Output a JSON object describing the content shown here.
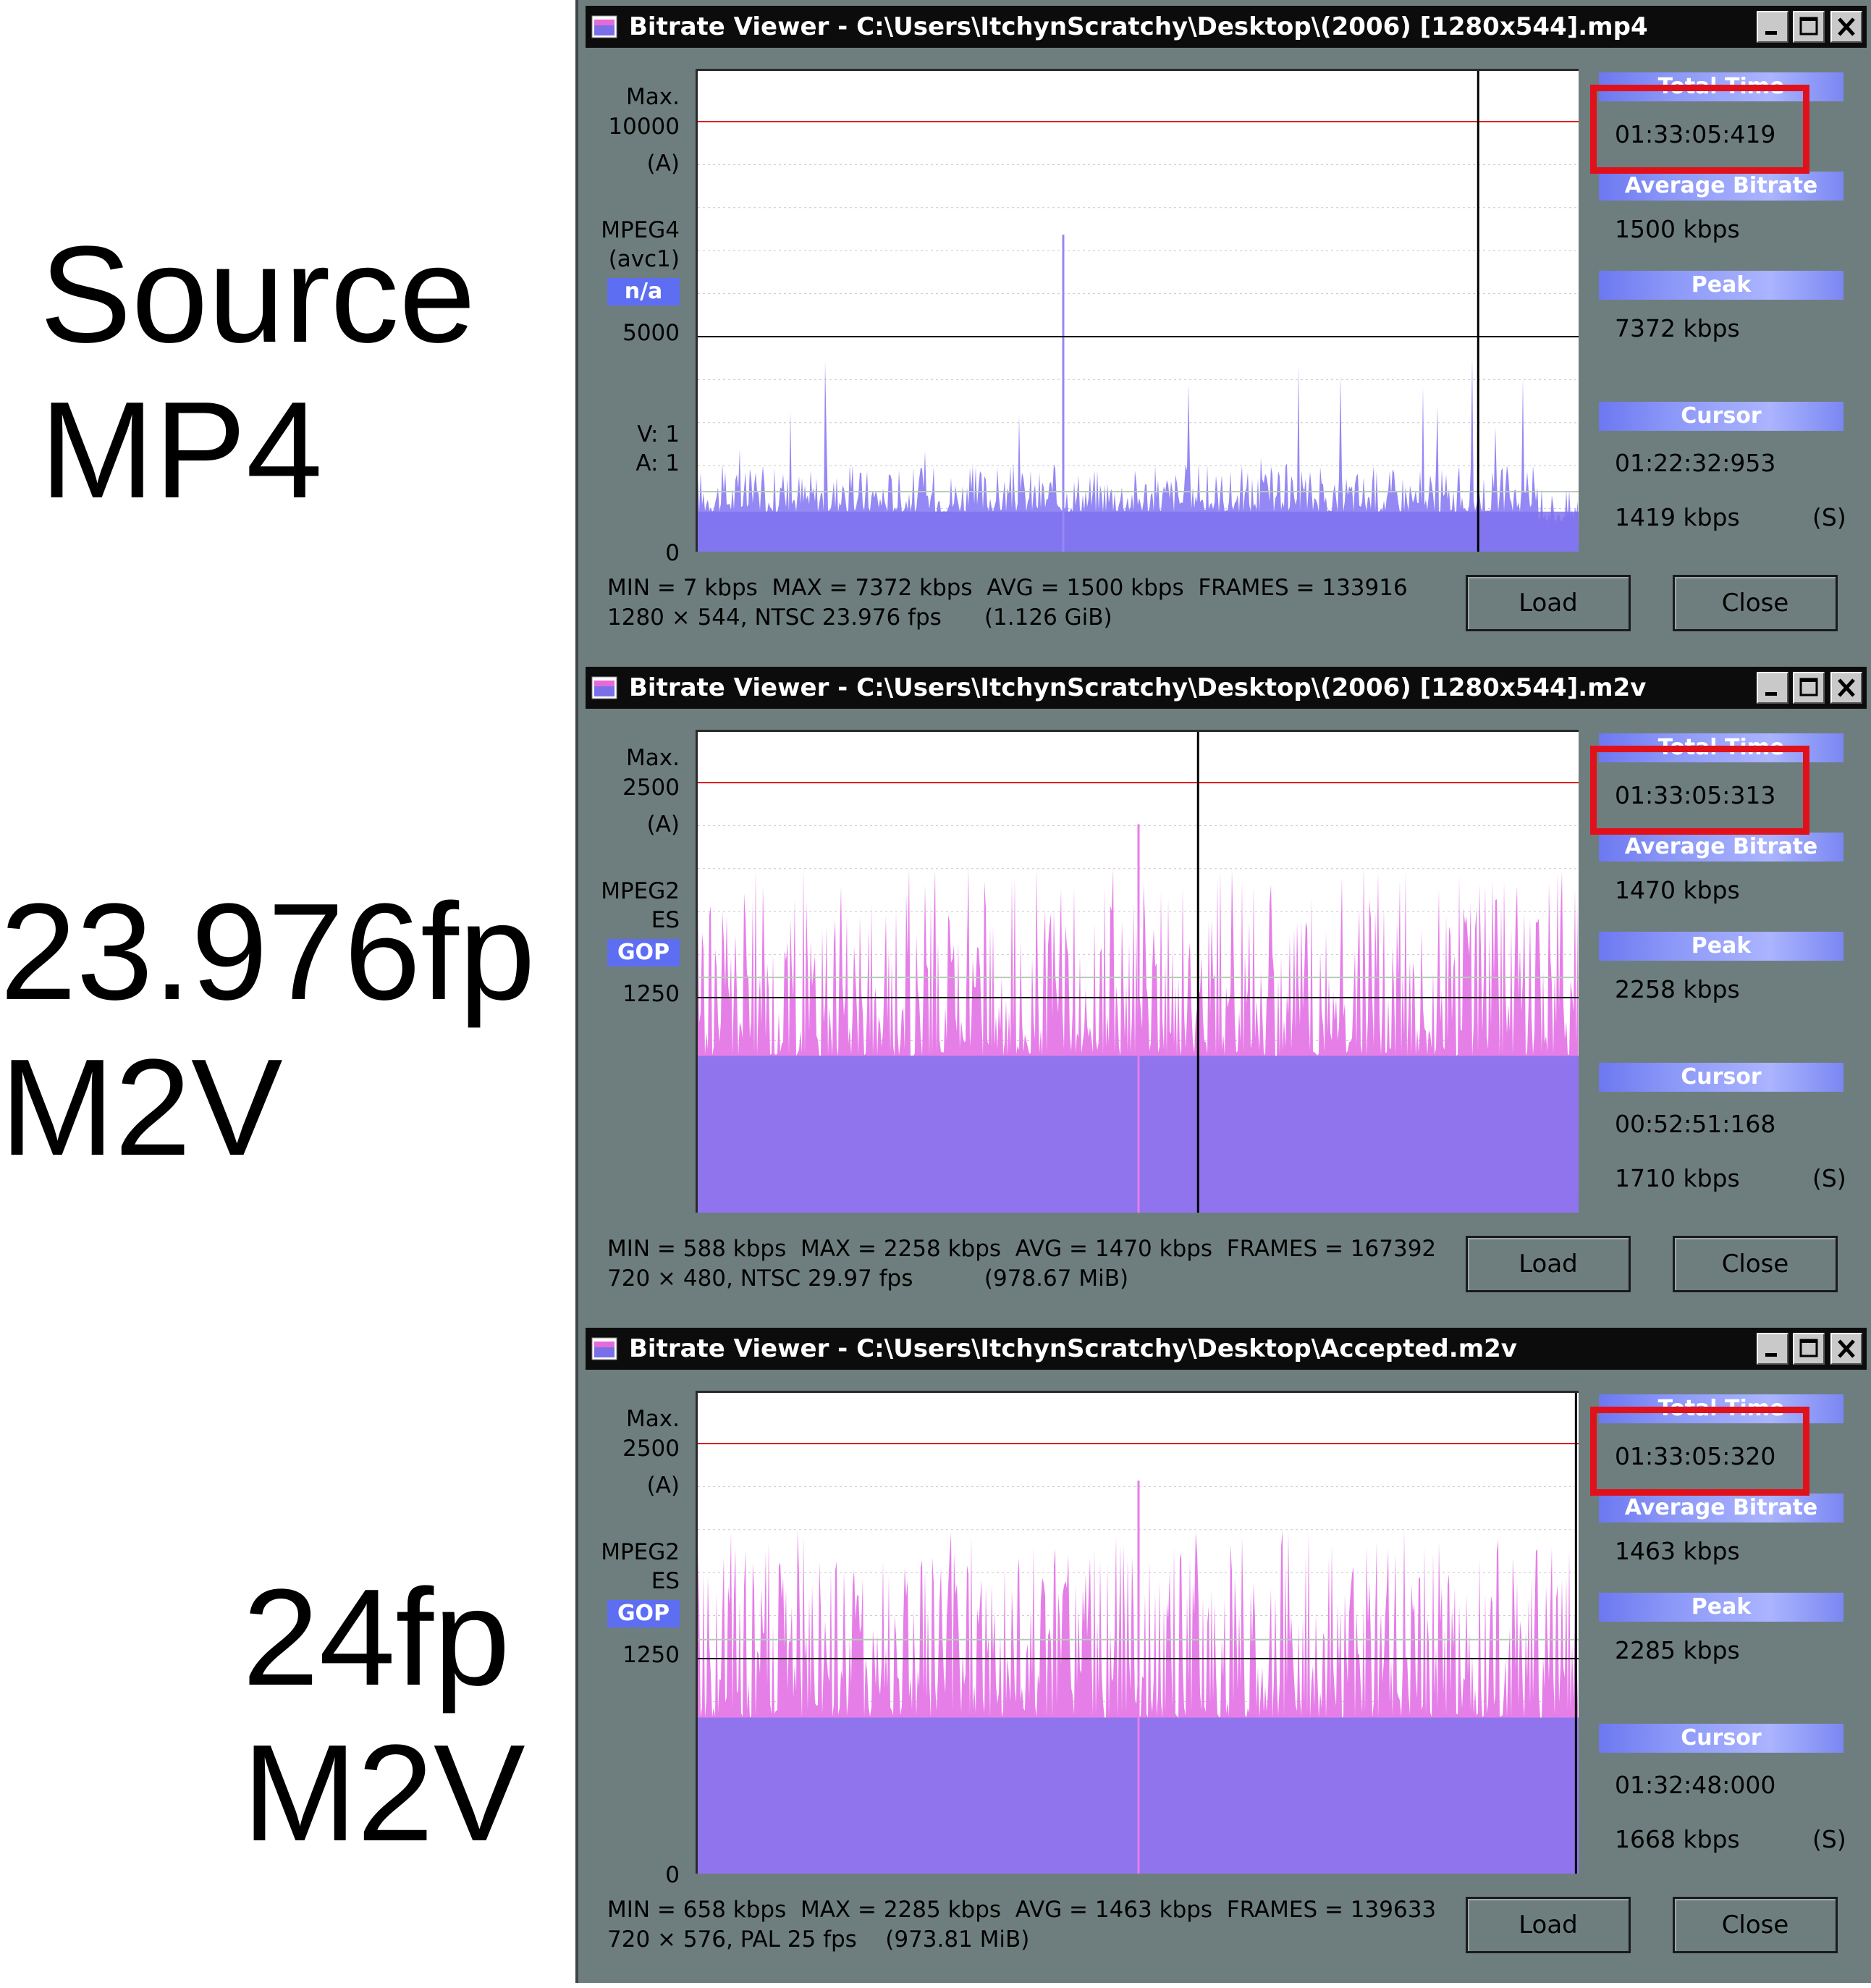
{
  "side_labels": [
    "Source\nMP4",
    "23.976fp\nM2V",
    "24fp\nM2V"
  ],
  "panel_headers": {
    "total_time": "Total Time",
    "avg_bitrate": "Average Bitrate",
    "peak": "Peak",
    "cursor": "Cursor"
  },
  "buttons": {
    "load": "Load",
    "close": "Close"
  },
  "windows": [
    {
      "title": "Bitrate Viewer - C:\\Users\\ItchynScratchy\\Desktop\\(2006) [1280x544].mp4",
      "y_axis": {
        "max_label": "Max.",
        "max": "10000",
        "a_label": "(A)",
        "mid": "5000",
        "zero": "0"
      },
      "codec_lines": [
        "MPEG4",
        "(avc1)"
      ],
      "badge": "n/a",
      "va_lines": [
        "V:  1",
        "A:  1"
      ],
      "total_time": "01:33:05:419",
      "avg_bitrate": "1500 kbps",
      "peak": "7372 kbps",
      "cursor_time": "01:22:32:953",
      "cursor_bitrate": "1419 kbps",
      "cursor_flag": "(S)",
      "stats_line1": "MIN = 7 kbps  MAX = 7372 kbps  AVG = 1500 kbps  FRAMES = 133916",
      "stats_line2": "1280 × 544, NTSC 23.976 fps      (1.126 GiB)",
      "graph": {
        "scale_max": 10000,
        "min": 7,
        "max": 7372,
        "avg": 1500,
        "bar_color": "#9488f4",
        "cursor_fraction": 0.886
      }
    },
    {
      "title": "Bitrate Viewer - C:\\Users\\ItchynScratchy\\Desktop\\(2006) [1280x544].m2v",
      "y_axis": {
        "max_label": "Max.",
        "max": "2500",
        "a_label": "(A)",
        "mid": "1250",
        "zero": ""
      },
      "codec_lines": [
        "MPEG2",
        "ES"
      ],
      "badge": "GOP",
      "va_lines": [],
      "total_time": "01:33:05:313",
      "avg_bitrate": "1470 kbps",
      "peak": "2258 kbps",
      "cursor_time": "00:52:51:168",
      "cursor_bitrate": "1710 kbps",
      "cursor_flag": "(S)",
      "stats_line1": "MIN = 588 kbps  MAX = 2258 kbps  AVG = 1470 kbps  FRAMES = 167392",
      "stats_line2": "720 × 480, NTSC 29.97 fps          (978.67 MiB)",
      "graph": {
        "scale_max": 2500,
        "min": 588,
        "max": 2258,
        "avg": 1470,
        "bar_color": "#e67ee8",
        "cursor_fraction": 0.568
      }
    },
    {
      "title": "Bitrate Viewer - C:\\Users\\ItchynScratchy\\Desktop\\Accepted.m2v",
      "y_axis": {
        "max_label": "Max.",
        "max": "2500",
        "a_label": "(A)",
        "mid": "1250",
        "zero": "0"
      },
      "codec_lines": [
        "MPEG2",
        "ES"
      ],
      "badge": "GOP",
      "va_lines": [],
      "total_time": "01:33:05:320",
      "avg_bitrate": "1463 kbps",
      "peak": "2285 kbps",
      "cursor_time": "01:32:48:000",
      "cursor_bitrate": "1668 kbps",
      "cursor_flag": "(S)",
      "stats_line1": "MIN = 658 kbps  MAX = 2285 kbps  AVG = 1463 kbps  FRAMES = 139633",
      "stats_line2": "720 × 576, PAL 25 fps    (973.81 MiB)",
      "graph": {
        "scale_max": 2500,
        "min": 658,
        "max": 2285,
        "avg": 1463,
        "bar_color": "#e67ee8",
        "cursor_fraction": 0.997
      }
    }
  ]
}
